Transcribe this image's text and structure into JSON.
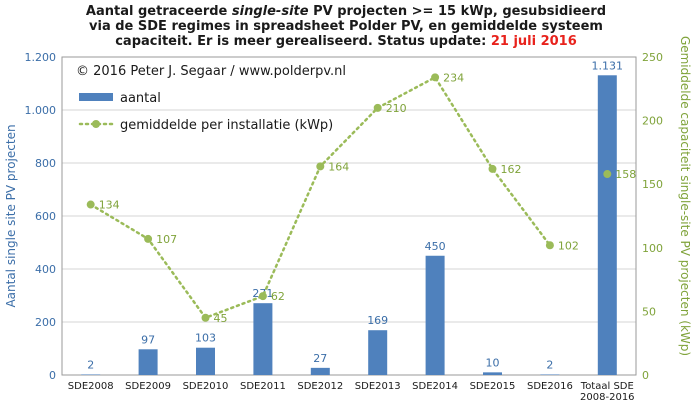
{
  "chart_data": {
    "type": "bar",
    "title_lines": [
      [
        "Aantal getraceerde ",
        "single-site",
        " PV projecten >= 15 kWp, gesubsidieerd"
      ],
      [
        "via de SDE regimes in spreadsheet Polder PV, en gemiddelde systeem"
      ],
      [
        "capaciteit. Er is meer gerealiseerd. Status update: ",
        "21 juli 2016"
      ]
    ],
    "copyright": "© 2016 Peter J. Segaar / www.polderpv.nl",
    "categories": [
      "SDE2008",
      "SDE2009",
      "SDE2010",
      "SDE2011",
      "SDE2012",
      "SDE2013",
      "SDE2014",
      "SDE2015",
      "SDE2016",
      "Totaal SDE\n2008-2016"
    ],
    "series": [
      {
        "name": "aantal",
        "type": "bar",
        "axis": "left",
        "color": "#4f81bd",
        "values": [
          2,
          97,
          103,
          271,
          27,
          169,
          450,
          10,
          2,
          1131
        ],
        "labels": [
          "2",
          "97",
          "103",
          "271",
          "27",
          "169",
          "450",
          "10",
          "2",
          "1.131"
        ]
      },
      {
        "name": "gemiddelde per installatie (kWp)",
        "type": "line",
        "axis": "right",
        "color": "#9bbb59",
        "values": [
          134,
          107,
          45,
          62,
          164,
          210,
          234,
          162,
          102,
          158
        ],
        "labels": [
          "134",
          "107",
          "45",
          "62",
          "164",
          "210",
          "234",
          "162",
          "102",
          "158"
        ]
      }
    ],
    "ylabel": "Aantal single site PV projecten",
    "y2label": "Gemiddelde capaciteit single-site PV projecten (kWp)",
    "ylim": [
      0,
      1200
    ],
    "y2lim": [
      0,
      250
    ],
    "yticks": [
      0,
      200,
      400,
      600,
      800,
      1000,
      1200
    ],
    "ytick_labels": [
      "0",
      "200",
      "400",
      "600",
      "800",
      "1.000",
      "1.200"
    ],
    "y2ticks": [
      0,
      50,
      100,
      150,
      200,
      250
    ],
    "y2tick_labels": [
      "0",
      "50",
      "100",
      "150",
      "200",
      "250"
    ],
    "grid": true,
    "legend_position": "top-left"
  }
}
